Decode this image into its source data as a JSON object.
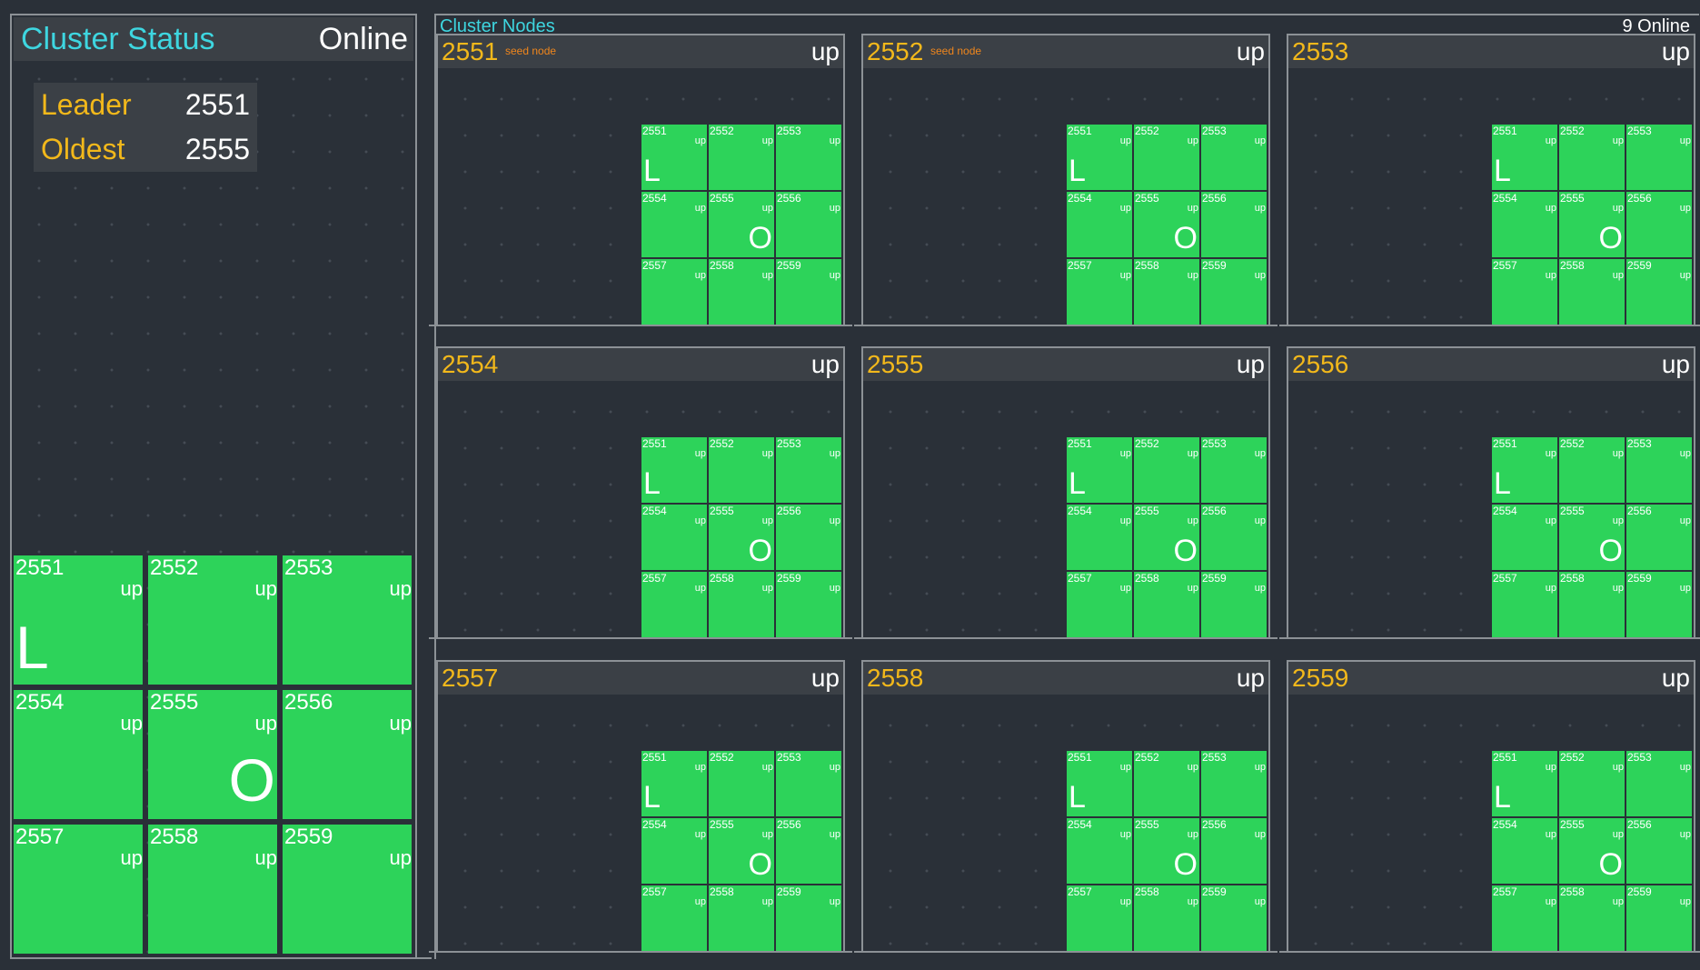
{
  "status": {
    "title": "Cluster Status",
    "state": "Online",
    "leader_label": "Leader",
    "leader_value": "2551",
    "oldest_label": "Oldest",
    "oldest_value": "2555"
  },
  "nodes_panel": {
    "title": "Cluster Nodes",
    "online_count": "9 Online"
  },
  "big_grid": [
    {
      "id": "2551",
      "state": "up",
      "role": "L"
    },
    {
      "id": "2552",
      "state": "up",
      "role": ""
    },
    {
      "id": "2553",
      "state": "up",
      "role": ""
    },
    {
      "id": "2554",
      "state": "up",
      "role": ""
    },
    {
      "id": "2555",
      "state": "up",
      "role": "O"
    },
    {
      "id": "2556",
      "state": "up",
      "role": ""
    },
    {
      "id": "2557",
      "state": "up",
      "role": ""
    },
    {
      "id": "2558",
      "state": "up",
      "role": ""
    },
    {
      "id": "2559",
      "state": "up",
      "role": ""
    }
  ],
  "node_cards": [
    {
      "id": "2551",
      "state": "up",
      "seed": "seed node"
    },
    {
      "id": "2552",
      "state": "up",
      "seed": "seed node"
    },
    {
      "id": "2553",
      "state": "up",
      "seed": ""
    },
    {
      "id": "2554",
      "state": "up",
      "seed": ""
    },
    {
      "id": "2555",
      "state": "up",
      "seed": ""
    },
    {
      "id": "2556",
      "state": "up",
      "seed": ""
    },
    {
      "id": "2557",
      "state": "up",
      "seed": ""
    },
    {
      "id": "2558",
      "state": "up",
      "seed": ""
    },
    {
      "id": "2559",
      "state": "up",
      "seed": ""
    }
  ],
  "colors": {
    "background": "#2a3038",
    "header": "#3b4046",
    "up_green": "#2dd35a",
    "title_cyan": "#3ed6e0",
    "node_id_yellow": "#f2b81b",
    "seed_orange": "#f0861c"
  }
}
